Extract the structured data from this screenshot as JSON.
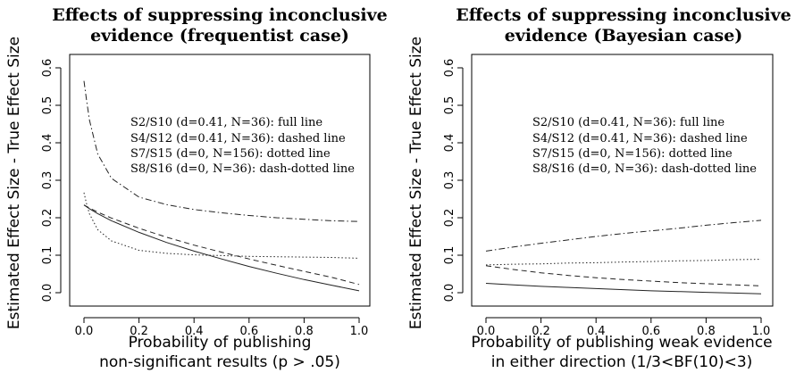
{
  "chart_data": [
    {
      "type": "line",
      "title_lines": [
        "Effects of suppressing inconclusive",
        "evidence (frequentist case)"
      ],
      "xlabel_lines": [
        "Probability of publishing",
        "non-significant results (p > .05)"
      ],
      "ylabel": "Estimated Effect Size - True Effect Size",
      "xlim": [
        0,
        1
      ],
      "ylim": [
        0,
        0.6
      ],
      "xticks": [
        "0.0",
        "0.2",
        "0.4",
        "0.6",
        "0.8",
        "1.0"
      ],
      "yticks": [
        "0.0",
        "0.1",
        "0.2",
        "0.3",
        "0.4",
        "0.5",
        "0.6"
      ],
      "grid": false,
      "legend_text": [
        "S2/S10 (d=0.41, N=36): full line",
        "S4/S12 (d=0.41, N=36): dashed line",
        "S7/S15 (d=0, N=156): dotted line",
        "S8/S16 (d=0, N=36): dash-dotted line"
      ],
      "legend_position": "upper right",
      "x": [
        0,
        0.01,
        0.02,
        0.05,
        0.1,
        0.2,
        0.3,
        0.4,
        0.5,
        0.6,
        0.7,
        0.8,
        0.9,
        1.0
      ],
      "series": [
        {
          "line_style": "solid",
          "values": [
            0.234,
            0.229,
            0.224,
            0.211,
            0.192,
            0.161,
            0.134,
            0.111,
            0.09,
            0.07,
            0.052,
            0.035,
            0.02,
            0.005
          ]
        },
        {
          "line_style": "dashed",
          "values": [
            0.234,
            0.23,
            0.226,
            0.215,
            0.199,
            0.172,
            0.148,
            0.127,
            0.108,
            0.09,
            0.073,
            0.057,
            0.041,
            0.022
          ]
        },
        {
          "line_style": "dotted",
          "values": [
            0.267,
            0.235,
            0.21,
            0.168,
            0.138,
            0.113,
            0.105,
            0.101,
            0.099,
            0.097,
            0.096,
            0.095,
            0.094,
            0.092
          ]
        },
        {
          "line_style": "dash-dotted",
          "values": [
            0.565,
            0.51,
            0.46,
            0.37,
            0.305,
            0.255,
            0.235,
            0.222,
            0.213,
            0.206,
            0.2,
            0.196,
            0.192,
            0.19
          ]
        }
      ]
    },
    {
      "type": "line",
      "title_lines": [
        "Effects of suppressing inconclusive",
        "evidence (Bayesian case)"
      ],
      "xlabel_lines": [
        "Probability of publishing weak evidence",
        "in either direction (1/3<BF(10)<3)"
      ],
      "ylabel": "Estimated Effect Size - True Effect Size",
      "xlim": [
        0,
        1
      ],
      "ylim": [
        0,
        0.6
      ],
      "xticks": [
        "0.0",
        "0.2",
        "0.4",
        "0.6",
        "0.8",
        "1.0"
      ],
      "yticks": [
        "0.0",
        "0.1",
        "0.2",
        "0.3",
        "0.4",
        "0.5",
        "0.6"
      ],
      "grid": false,
      "legend_text": [
        "S2/S10 (d=0.41, N=36): full line",
        "S4/S12 (d=0.41, N=36): dashed line",
        "S7/S15 (d=0, N=156): dotted line",
        "S8/S16 (d=0, N=36): dash-dotted line"
      ],
      "legend_position": "upper right",
      "x": [
        0,
        0.1,
        0.2,
        0.3,
        0.4,
        0.5,
        0.6,
        0.7,
        0.8,
        0.9,
        1.0
      ],
      "series": [
        {
          "line_style": "solid",
          "values": [
            0.025,
            0.021,
            0.017,
            0.014,
            0.011,
            0.008,
            0.005,
            0.003,
            0.001,
            -0.001,
            -0.003
          ]
        },
        {
          "line_style": "dashed",
          "values": [
            0.072,
            0.062,
            0.053,
            0.046,
            0.04,
            0.035,
            0.031,
            0.027,
            0.024,
            0.021,
            0.018
          ]
        },
        {
          "line_style": "dotted",
          "values": [
            0.074,
            0.076,
            0.077,
            0.079,
            0.08,
            0.082,
            0.083,
            0.085,
            0.086,
            0.088,
            0.089
          ]
        },
        {
          "line_style": "dash-dotted",
          "values": [
            0.111,
            0.122,
            0.132,
            0.141,
            0.15,
            0.158,
            0.165,
            0.172,
            0.18,
            0.187,
            0.193
          ]
        }
      ]
    }
  ]
}
